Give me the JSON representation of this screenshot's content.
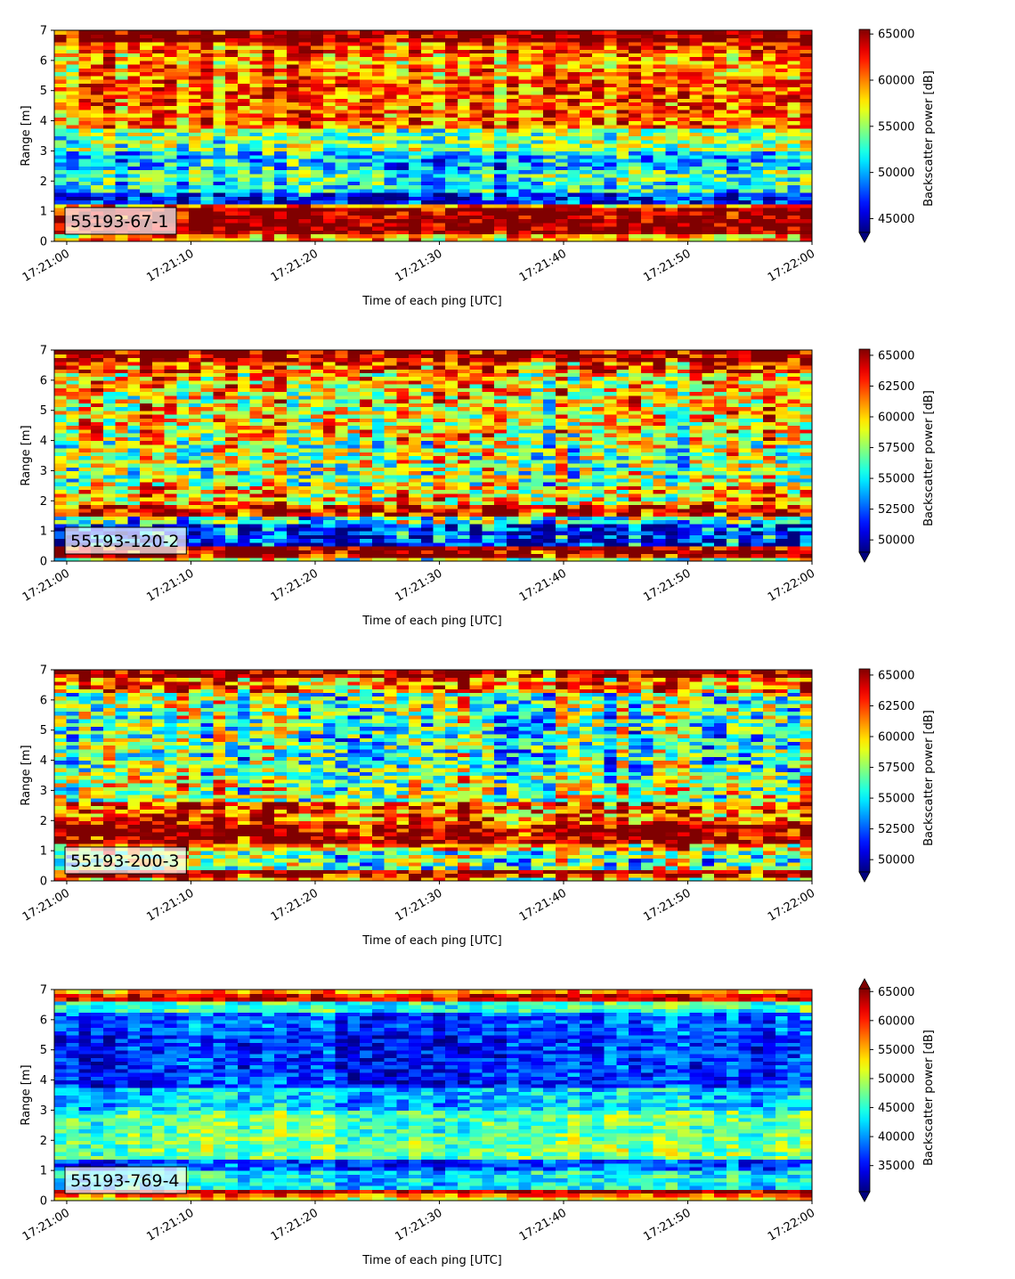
{
  "chart_data": [
    {
      "type": "heatmap",
      "label": "55193-67-1",
      "xlabel": "Time of each ping [UTC]",
      "ylabel": "Range [m]",
      "x_ticks": [
        "17:21:00",
        "17:21:10",
        "17:21:20",
        "17:21:30",
        "17:21:40",
        "17:21:50",
        "17:22:00"
      ],
      "x_range": [
        "17:20:59",
        "17:22:00"
      ],
      "y_ticks": [
        0,
        1,
        2,
        3,
        4,
        5,
        6,
        7
      ],
      "ylim": [
        0,
        7
      ],
      "colorbar": {
        "label": "Backscatter power [dB]",
        "ticks": [
          45000,
          50000,
          55000,
          60000,
          65000
        ],
        "range": [
          43500,
          65500
        ],
        "extend": "min",
        "colormap": "jet"
      },
      "range_profile": [
        [
          0.0,
          0.2,
          59000
        ],
        [
          0.2,
          1.1,
          65500
        ],
        [
          1.1,
          1.3,
          60000
        ],
        [
          1.3,
          1.65,
          46500
        ],
        [
          1.65,
          2.0,
          52000
        ],
        [
          2.0,
          2.4,
          53000
        ],
        [
          2.4,
          3.0,
          50500
        ],
        [
          3.0,
          3.8,
          54500
        ],
        [
          3.8,
          4.6,
          60500
        ],
        [
          4.6,
          5.4,
          61000
        ],
        [
          5.4,
          6.2,
          59500
        ],
        [
          6.2,
          6.6,
          61000
        ],
        [
          6.6,
          7.0,
          65500
        ]
      ]
    },
    {
      "type": "heatmap",
      "label": "55193-120-2",
      "xlabel": "Time of each ping [UTC]",
      "ylabel": "Range [m]",
      "x_ticks": [
        "17:21:00",
        "17:21:10",
        "17:21:20",
        "17:21:30",
        "17:21:40",
        "17:21:50",
        "17:22:00"
      ],
      "x_range": [
        "17:20:59",
        "17:22:00"
      ],
      "y_ticks": [
        0,
        1,
        2,
        3,
        4,
        5,
        6,
        7
      ],
      "ylim": [
        0,
        7
      ],
      "colorbar": {
        "label": "Backscatter power [dB]",
        "ticks": [
          50000,
          52500,
          55000,
          57500,
          60000,
          62500,
          65000
        ],
        "range": [
          49000,
          65500
        ],
        "extend": "min",
        "colormap": "jet"
      },
      "range_profile": [
        [
          0.0,
          0.1,
          58000
        ],
        [
          0.1,
          0.5,
          65500
        ],
        [
          0.5,
          1.2,
          51500
        ],
        [
          1.2,
          1.5,
          56000
        ],
        [
          1.5,
          1.9,
          64000
        ],
        [
          1.9,
          2.5,
          60000
        ],
        [
          2.5,
          4.0,
          58000
        ],
        [
          4.0,
          5.5,
          59500
        ],
        [
          5.5,
          6.3,
          60000
        ],
        [
          6.3,
          6.6,
          62500
        ],
        [
          6.6,
          7.0,
          65500
        ]
      ]
    },
    {
      "type": "heatmap",
      "label": "55193-200-3",
      "xlabel": "Time of each ping [UTC]",
      "ylabel": "Range [m]",
      "x_ticks": [
        "17:21:00",
        "17:21:10",
        "17:21:20",
        "17:21:30",
        "17:21:40",
        "17:21:50",
        "17:22:00"
      ],
      "x_range": [
        "17:20:59",
        "17:22:00"
      ],
      "y_ticks": [
        0,
        1,
        2,
        3,
        4,
        5,
        6,
        7
      ],
      "ylim": [
        0,
        7
      ],
      "colorbar": {
        "label": "Backscatter power [dB]",
        "ticks": [
          50000,
          52500,
          55000,
          57500,
          60000,
          62500,
          65000
        ],
        "range": [
          49000,
          65500
        ],
        "extend": "min",
        "colormap": "jet"
      },
      "range_profile": [
        [
          0.0,
          0.15,
          60000
        ],
        [
          0.15,
          0.4,
          65000
        ],
        [
          0.4,
          1.0,
          57000
        ],
        [
          1.0,
          1.3,
          60500
        ],
        [
          1.3,
          1.9,
          65500
        ],
        [
          1.9,
          2.6,
          62500
        ],
        [
          2.6,
          3.5,
          58000
        ],
        [
          3.5,
          5.5,
          56500
        ],
        [
          5.5,
          6.3,
          57000
        ],
        [
          6.3,
          6.7,
          61500
        ],
        [
          6.7,
          7.0,
          65500
        ]
      ]
    },
    {
      "type": "heatmap",
      "label": "55193-769-4",
      "xlabel": "Time of each ping [UTC]",
      "ylabel": "Range [m]",
      "x_ticks": [
        "17:21:00",
        "17:21:10",
        "17:21:20",
        "17:21:30",
        "17:21:40",
        "17:21:50",
        "17:22:00"
      ],
      "x_range": [
        "17:20:59",
        "17:22:00"
      ],
      "y_ticks": [
        0,
        1,
        2,
        3,
        4,
        5,
        6,
        7
      ],
      "ylim": [
        0,
        7
      ],
      "colorbar": {
        "label": "Backscatter power [dB]",
        "ticks": [
          35000,
          40000,
          45000,
          50000,
          55000,
          60000,
          65000
        ],
        "range": [
          30500,
          65500
        ],
        "extend": "both",
        "colormap": "jet"
      },
      "range_profile": [
        [
          0.0,
          0.1,
          52000
        ],
        [
          0.1,
          0.25,
          58000
        ],
        [
          0.25,
          0.35,
          64000
        ],
        [
          0.35,
          1.0,
          43000
        ],
        [
          1.0,
          1.4,
          37000
        ],
        [
          1.4,
          2.2,
          47500
        ],
        [
          2.2,
          3.0,
          46500
        ],
        [
          3.0,
          3.8,
          41500
        ],
        [
          3.8,
          5.5,
          36000
        ],
        [
          5.5,
          6.3,
          37500
        ],
        [
          6.3,
          6.6,
          45000
        ],
        [
          6.6,
          6.85,
          62000
        ],
        [
          6.85,
          7.0,
          55000
        ]
      ]
    }
  ]
}
